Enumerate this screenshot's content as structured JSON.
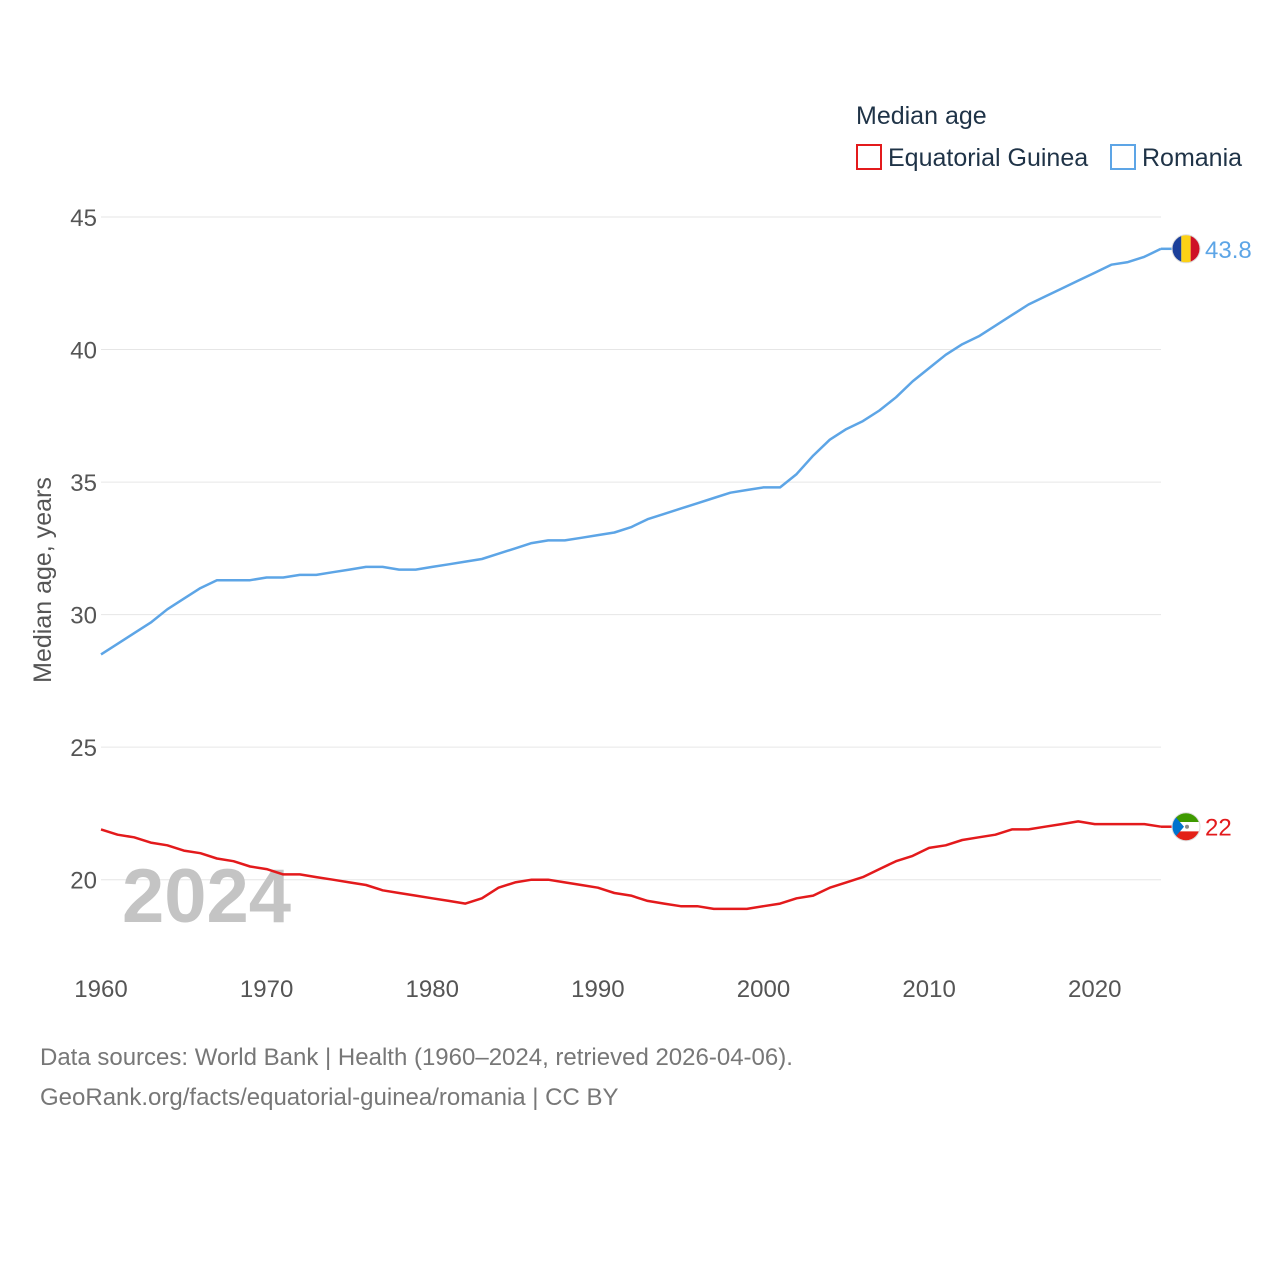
{
  "chart_data": {
    "type": "line",
    "title": "Median age",
    "xlabel": "",
    "ylabel": "Median age, years",
    "xlim": [
      1960,
      2024
    ],
    "ylim": [
      17.5,
      45
    ],
    "yticks": [
      20,
      25,
      30,
      35,
      40,
      45
    ],
    "xticks": [
      1960,
      1970,
      1980,
      1990,
      2000,
      2010,
      2020
    ],
    "year_label": "2024",
    "legend_position": "top-right",
    "x": [
      1960,
      1961,
      1962,
      1963,
      1964,
      1965,
      1966,
      1967,
      1968,
      1969,
      1970,
      1971,
      1972,
      1973,
      1974,
      1975,
      1976,
      1977,
      1978,
      1979,
      1980,
      1981,
      1982,
      1983,
      1984,
      1985,
      1986,
      1987,
      1988,
      1989,
      1990,
      1991,
      1992,
      1993,
      1994,
      1995,
      1996,
      1997,
      1998,
      1999,
      2000,
      2001,
      2002,
      2003,
      2004,
      2005,
      2006,
      2007,
      2008,
      2009,
      2010,
      2011,
      2012,
      2013,
      2014,
      2015,
      2016,
      2017,
      2018,
      2019,
      2020,
      2021,
      2022,
      2023,
      2024
    ],
    "series": [
      {
        "name": "Equatorial Guinea",
        "color": "#e31a1c",
        "end_label": "22",
        "flag": "equatorial-guinea-flag-icon",
        "values": [
          21.9,
          21.7,
          21.6,
          21.4,
          21.3,
          21.1,
          21.0,
          20.8,
          20.7,
          20.5,
          20.4,
          20.2,
          20.2,
          20.1,
          20.0,
          19.9,
          19.8,
          19.6,
          19.5,
          19.4,
          19.3,
          19.2,
          19.1,
          19.3,
          19.7,
          19.9,
          20.0,
          20.0,
          19.9,
          19.8,
          19.7,
          19.5,
          19.4,
          19.2,
          19.1,
          19.0,
          19.0,
          18.9,
          18.9,
          18.9,
          19.0,
          19.1,
          19.3,
          19.4,
          19.7,
          19.9,
          20.1,
          20.4,
          20.7,
          20.9,
          21.2,
          21.3,
          21.5,
          21.6,
          21.7,
          21.9,
          21.9,
          22.0,
          22.1,
          22.2,
          22.1,
          22.1,
          22.1,
          22.1,
          22.0
        ]
      },
      {
        "name": "Romania",
        "color": "#5da5e6",
        "end_label": "43.8",
        "flag": "romania-flag-icon",
        "values": [
          28.5,
          28.9,
          29.3,
          29.7,
          30.2,
          30.6,
          31.0,
          31.3,
          31.3,
          31.3,
          31.4,
          31.4,
          31.5,
          31.5,
          31.6,
          31.7,
          31.8,
          31.8,
          31.7,
          31.7,
          31.8,
          31.9,
          32.0,
          32.1,
          32.3,
          32.5,
          32.7,
          32.8,
          32.8,
          32.9,
          33.0,
          33.1,
          33.3,
          33.6,
          33.8,
          34.0,
          34.2,
          34.4,
          34.6,
          34.7,
          34.8,
          34.8,
          35.3,
          36.0,
          36.6,
          37.0,
          37.3,
          37.7,
          38.2,
          38.8,
          39.3,
          39.8,
          40.2,
          40.5,
          40.9,
          41.3,
          41.7,
          42.0,
          42.3,
          42.6,
          42.9,
          43.2,
          43.3,
          43.5,
          43.8
        ]
      }
    ]
  },
  "footer": {
    "line1": "Data sources: World Bank | Health (1960–2024, retrieved 2026-04-06).",
    "line2": "GeoRank.org/facts/equatorial-guinea/romania | CC BY"
  }
}
